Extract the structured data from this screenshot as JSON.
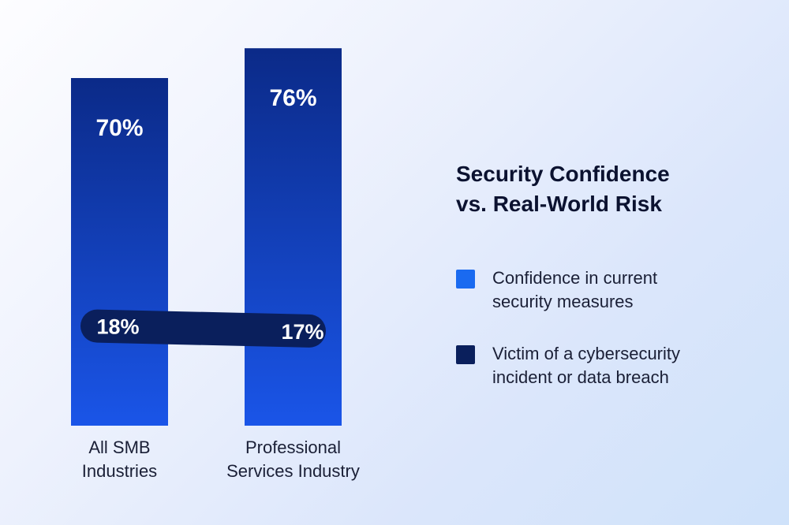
{
  "colors": {
    "confidence_bar_top": "#0b2a88",
    "confidence_bar_bottom": "#1a55e8",
    "victim_band": "#0a1f5c",
    "legend_confidence": "#1a6af0",
    "legend_victim": "#0a1f5c"
  },
  "chart_data": {
    "type": "bar",
    "title": "Security Confidence vs. Real-World Risk",
    "title_lines": [
      "Security Confidence",
      "vs. Real-World Risk"
    ],
    "categories": [
      "All SMB Industries",
      "Professional Services Industry"
    ],
    "category_lines": [
      [
        "All SMB",
        "Industries"
      ],
      [
        "Professional",
        "Services Industry"
      ]
    ],
    "series": [
      {
        "name": "Confidence in current security measures",
        "name_lines": [
          "Confidence in current",
          "security measures"
        ],
        "values": [
          70,
          76
        ],
        "labels": [
          "70%",
          "76%"
        ]
      },
      {
        "name": "Victim of a cybersecurity incident or data breach",
        "name_lines": [
          "Victim of a cybersecurity",
          "incident or data breach"
        ],
        "values": [
          18,
          17
        ],
        "labels": [
          "18%",
          "17%"
        ]
      }
    ],
    "ylim": [
      0,
      100
    ],
    "xlabel": "",
    "ylabel": "",
    "grid": false,
    "legend_position": "right"
  }
}
